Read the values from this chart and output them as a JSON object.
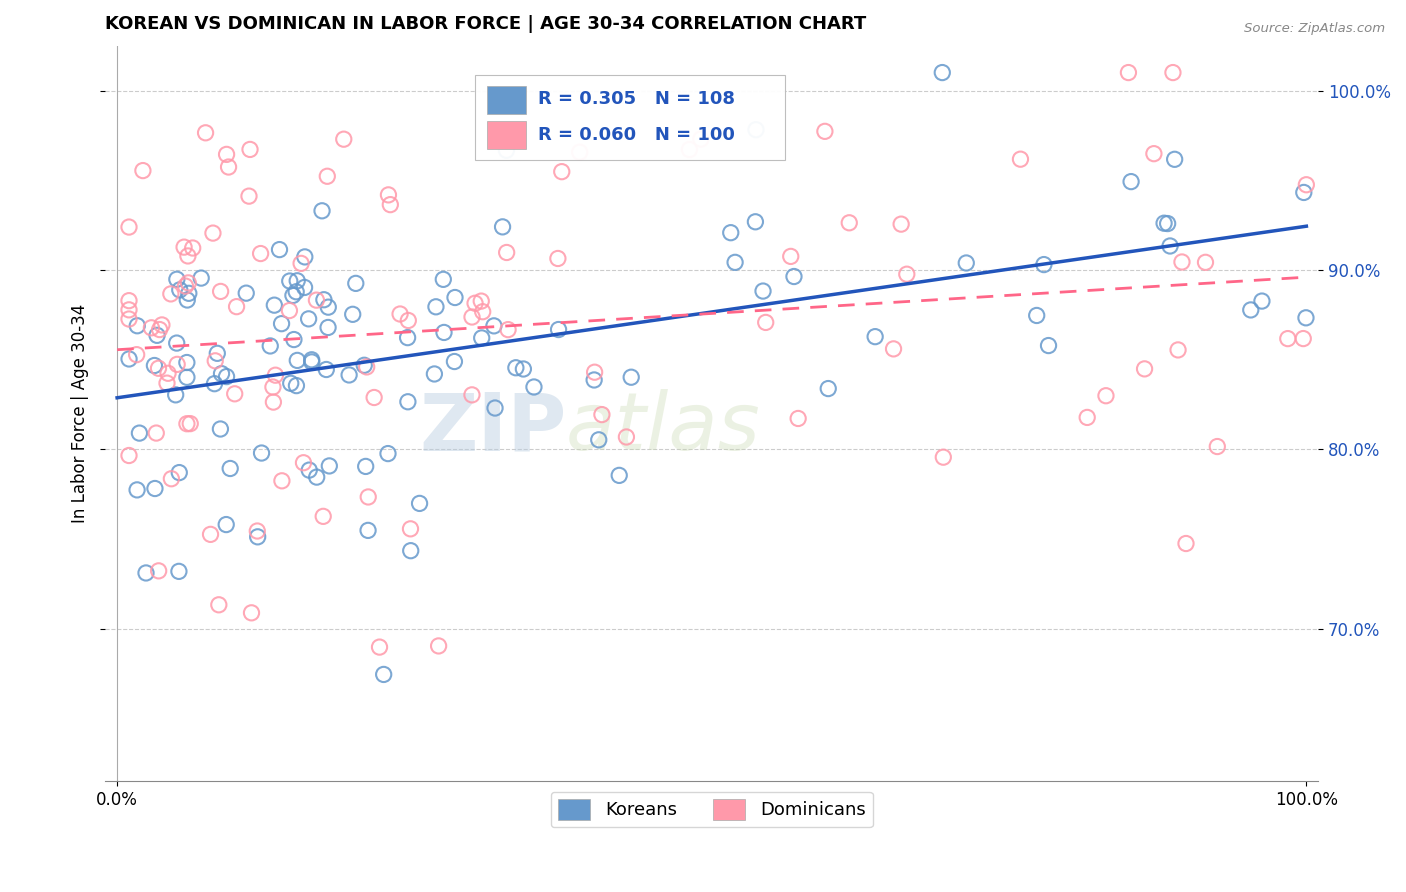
{
  "title": "KOREAN VS DOMINICAN IN LABOR FORCE | AGE 30-34 CORRELATION CHART",
  "source": "Source: ZipAtlas.com",
  "ylabel": "In Labor Force | Age 30-34",
  "korean_color": "#6699CC",
  "dominican_color": "#FF99AA",
  "korean_line_color": "#2255BB",
  "dominican_line_color": "#FF6688",
  "korean_R": 0.305,
  "korean_N": 108,
  "dominican_R": 0.06,
  "dominican_N": 100,
  "legend_labels": [
    "Koreans",
    "Dominicans"
  ],
  "watermark_zip": "ZIP",
  "watermark_atlas": "atlas",
  "ytick_vals": [
    0.7,
    0.8,
    0.9,
    1.0
  ],
  "ytick_labels": [
    "70.0%",
    "80.0%",
    "90.0%",
    "100.0%"
  ],
  "xlim": [
    -0.01,
    1.01
  ],
  "ylim": [
    0.615,
    1.025
  ],
  "seed": 1234
}
